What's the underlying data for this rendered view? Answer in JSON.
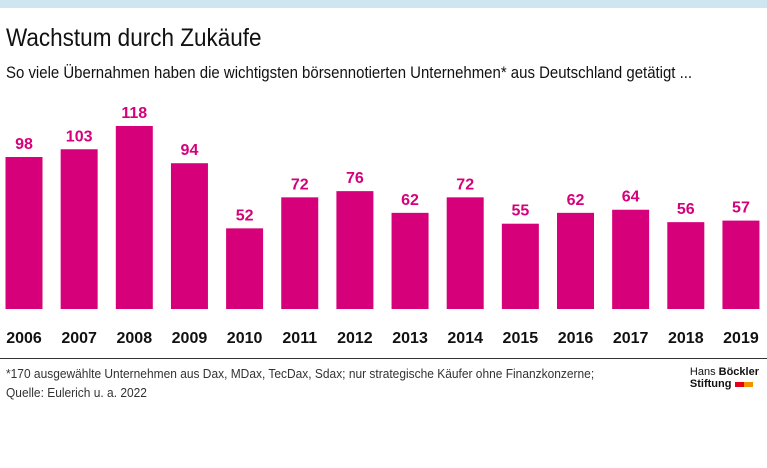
{
  "colors": {
    "bar": "#d6007a",
    "topbar": "#cde6ef",
    "label": "#d6007a"
  },
  "header": {
    "title": "Wachstum durch Zukäufe",
    "subtitle": "So viele Übernahmen haben die wichtigsten börsennotierten Unternehmen* aus Deutschland getätigt ..."
  },
  "chart_data": {
    "type": "bar",
    "categories": [
      "2006",
      "2007",
      "2008",
      "2009",
      "2010",
      "2011",
      "2012",
      "2013",
      "2014",
      "2015",
      "2016",
      "2017",
      "2018",
      "2019"
    ],
    "values": [
      98,
      103,
      118,
      94,
      52,
      72,
      76,
      62,
      72,
      55,
      62,
      64,
      56,
      57
    ],
    "ylim": [
      0,
      118
    ],
    "grid": false
  },
  "footer": {
    "note": "*170 ausgewählte Unternehmen aus Dax, MDax, TecDax, Sdax; nur strategische Käufer ohne Finanzkonzerne;",
    "source": "Quelle: Eulerich u. a. 2022"
  },
  "logo": {
    "line1a": "Hans ",
    "line1b": "Böckler",
    "line2": "Stiftung"
  }
}
